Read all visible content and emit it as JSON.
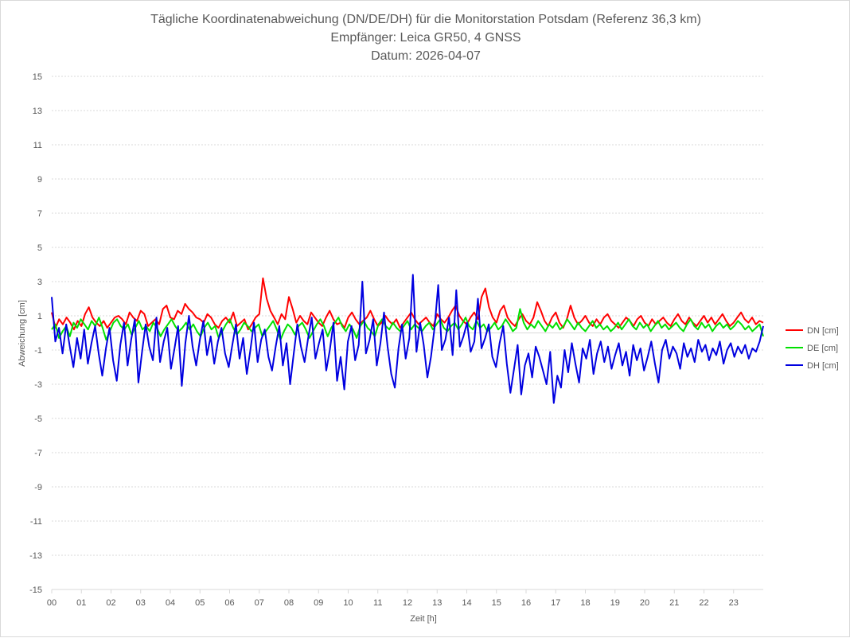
{
  "chart_data": {
    "type": "line",
    "title_lines": [
      "Tägliche Koordinatenabweichung (DN/DE/DH) für die Monitorstation Potsdam (Referenz 36,3 km)",
      "Empfänger: Leica GR50, 4 GNSS",
      "Datum: 2026-04-07"
    ],
    "xlabel": "Zeit [h]",
    "ylabel": "Abweichung [cm]",
    "xlim": [
      0,
      24
    ],
    "ylim": [
      -15,
      15
    ],
    "x_ticks": [
      "00",
      "01",
      "02",
      "03",
      "04",
      "05",
      "06",
      "07",
      "08",
      "09",
      "10",
      "11",
      "12",
      "13",
      "14",
      "15",
      "16",
      "17",
      "18",
      "19",
      "20",
      "21",
      "22",
      "23"
    ],
    "y_ticks": [
      "15",
      "13",
      "11",
      "9",
      "7",
      "5",
      "3",
      "1",
      "-1",
      "-3",
      "-5",
      "-7",
      "-9",
      "-11",
      "-13",
      "-15"
    ],
    "legend_position": "right",
    "x_step_hours": 0.0417,
    "series": [
      {
        "name": "DN [cm]",
        "color": "#ff0000",
        "values": [
          1.2,
          0.3,
          0.8,
          0.5,
          0.9,
          0.6,
          0.2,
          0.7,
          0.4,
          1.1,
          1.5,
          0.9,
          0.6,
          0.4,
          0.7,
          0.3,
          0.6,
          0.9,
          1.0,
          0.8,
          0.5,
          1.2,
          0.9,
          0.7,
          1.3,
          1.1,
          0.4,
          0.6,
          0.8,
          0.5,
          1.4,
          1.6,
          0.9,
          0.8,
          1.3,
          1.1,
          1.7,
          1.4,
          1.2,
          0.9,
          0.8,
          0.6,
          1.1,
          0.9,
          0.5,
          0.3,
          0.7,
          0.9,
          0.6,
          1.2,
          0.4,
          0.6,
          0.8,
          0.2,
          0.5,
          0.9,
          1.1,
          3.2,
          2.0,
          1.3,
          0.9,
          0.5,
          1.1,
          0.8,
          2.1,
          1.4,
          0.6,
          1.0,
          0.7,
          0.5,
          1.2,
          0.9,
          0.6,
          0.4,
          0.9,
          1.3,
          0.8,
          0.5,
          0.6,
          0.3,
          0.9,
          1.2,
          0.8,
          0.5,
          0.7,
          0.9,
          1.3,
          0.8,
          0.4,
          0.6,
          1.0,
          0.7,
          0.5,
          0.8,
          0.3,
          0.6,
          0.9,
          1.2,
          0.8,
          0.5,
          0.7,
          0.9,
          0.6,
          0.4,
          1.1,
          0.8,
          0.6,
          0.9,
          1.3,
          1.6,
          1.0,
          0.7,
          0.5,
          0.9,
          1.2,
          0.8,
          2.1,
          2.6,
          1.5,
          0.9,
          0.6,
          1.3,
          1.6,
          0.9,
          0.6,
          0.4,
          0.8,
          1.1,
          0.7,
          0.5,
          0.9,
          1.8,
          1.3,
          0.7,
          0.4,
          0.9,
          1.2,
          0.6,
          0.3,
          0.8,
          1.6,
          0.9,
          0.5,
          0.7,
          1.0,
          0.6,
          0.4,
          0.8,
          0.5,
          0.9,
          1.1,
          0.7,
          0.5,
          0.3,
          0.6,
          0.9,
          0.7,
          0.4,
          0.8,
          1.0,
          0.6,
          0.4,
          0.8,
          0.5,
          0.7,
          0.9,
          0.6,
          0.4,
          0.8,
          1.1,
          0.7,
          0.5,
          0.9,
          0.6,
          0.4,
          0.7,
          1.0,
          0.6,
          0.9,
          0.5,
          0.8,
          1.1,
          0.7,
          0.4,
          0.6,
          0.9,
          1.2,
          0.8,
          0.6,
          0.9,
          0.5,
          0.7,
          0.6
        ],
        "note": ""
      },
      {
        "name": "DE [cm]",
        "color": "#00e000",
        "values": [
          0.2,
          0.5,
          -0.3,
          0.1,
          0.4,
          -0.2,
          0.6,
          0.3,
          0.8,
          0.5,
          0.2,
          0.7,
          0.4,
          0.9,
          0.3,
          -0.4,
          0.1,
          0.6,
          0.8,
          0.4,
          0.2,
          0.5,
          -0.1,
          0.3,
          0.7,
          0.2,
          0.4,
          0.1,
          0.6,
          0.3,
          -0.2,
          0.2,
          0.5,
          0.8,
          0.4,
          0.1,
          0.3,
          0.6,
          0.2,
          0.5,
          0.1,
          -0.2,
          0.3,
          0.6,
          0.2,
          0.4,
          -0.3,
          0.1,
          0.5,
          0.8,
          0.3,
          -0.1,
          0.2,
          0.6,
          0.4,
          0.1,
          0.3,
          0.5,
          -0.2,
          0.1,
          0.4,
          0.7,
          0.2,
          -0.4,
          0.1,
          0.5,
          0.3,
          -0.1,
          0.4,
          0.6,
          0.2,
          -0.3,
          0.1,
          0.5,
          0.8,
          0.4,
          -0.2,
          0.3,
          0.6,
          0.9,
          0.4,
          0.1,
          0.5,
          0.2,
          -0.3,
          0.4,
          0.7,
          0.3,
          0.1,
          -0.2,
          0.5,
          0.8,
          0.4,
          0.2,
          0.6,
          0.3,
          0.1,
          0.4,
          0.7,
          0.2,
          0.5,
          0.3,
          0.1,
          0.4,
          0.6,
          0.2,
          0.5,
          0.8,
          0.3,
          0.1,
          0.4,
          0.6,
          0.2,
          0.5,
          0.9,
          0.4,
          0.2,
          0.7,
          0.3,
          0.5,
          0.1,
          0.3,
          0.6,
          0.2,
          0.4,
          0.8,
          0.5,
          0.1,
          0.3,
          1.4,
          0.6,
          0.2,
          0.5,
          0.3,
          0.7,
          0.4,
          0.1,
          0.5,
          0.3,
          0.6,
          0.2,
          0.4,
          0.8,
          0.5,
          0.2,
          0.6,
          0.3,
          0.1,
          0.4,
          0.7,
          0.3,
          0.5,
          0.2,
          0.4,
          0.1,
          0.3,
          0.6,
          0.2,
          0.5,
          0.8,
          0.4,
          0.2,
          0.6,
          0.3,
          0.5,
          0.1,
          0.4,
          0.7,
          0.3,
          0.5,
          0.2,
          0.4,
          0.6,
          0.3,
          0.1,
          0.5,
          0.8,
          0.4,
          0.2,
          0.6,
          0.3,
          0.5,
          0.1,
          0.4,
          0.6,
          0.3,
          0.5,
          0.2,
          0.4,
          0.7,
          0.5,
          0.2,
          0.4,
          0.1,
          0.3,
          0.5,
          -0.2
        ],
        "note": ""
      },
      {
        "name": "DH [cm]",
        "color": "#0000e0",
        "values": [
          2.1,
          -0.5,
          0.3,
          -1.2,
          0.5,
          -0.8,
          -2.0,
          -0.3,
          -1.5,
          0.2,
          -1.8,
          -0.6,
          0.4,
          -1.2,
          -2.5,
          -0.9,
          0.3,
          -1.6,
          -2.8,
          -0.7,
          0.6,
          -1.9,
          -0.4,
          0.8,
          -2.9,
          -1.1,
          0.5,
          -0.8,
          -1.6,
          0.9,
          -1.7,
          -0.5,
          0.3,
          -2.1,
          -0.9,
          0.4,
          -3.1,
          -0.6,
          1.0,
          -0.8,
          -1.9,
          -0.4,
          0.7,
          -1.3,
          -0.2,
          -1.8,
          -0.5,
          0.3,
          -1.2,
          -2.0,
          -0.7,
          0.5,
          -1.5,
          -0.3,
          -2.4,
          -1.0,
          0.6,
          -1.7,
          -0.4,
          0.2,
          -1.4,
          -2.2,
          -0.8,
          0.4,
          -1.9,
          -0.6,
          -3.0,
          -1.2,
          0.5,
          -0.8,
          -1.7,
          -0.3,
          0.9,
          -1.5,
          -0.6,
          0.2,
          -2.2,
          -1.0,
          0.6,
          -2.8,
          -1.4,
          -3.3,
          -0.5,
          0.4,
          -1.6,
          -0.7,
          3.0,
          -1.2,
          -0.4,
          0.8,
          -1.9,
          -0.6,
          1.2,
          -0.8,
          -2.4,
          -3.2,
          -0.9,
          0.5,
          -1.5,
          -0.3,
          3.4,
          -1.1,
          0.6,
          -0.7,
          -2.6,
          -1.4,
          0.3,
          2.8,
          -1.0,
          -0.4,
          0.9,
          -1.3,
          2.5,
          -0.8,
          -0.2,
          0.6,
          -1.1,
          -0.5,
          2.0,
          -0.9,
          -0.3,
          0.5,
          -1.4,
          -2.0,
          -0.6,
          0.4,
          -1.8,
          -3.5,
          -2.1,
          -0.7,
          -3.6,
          -1.9,
          -1.2,
          -2.6,
          -0.8,
          -1.4,
          -2.2,
          -3.0,
          -1.1,
          -4.1,
          -2.5,
          -3.2,
          -1.0,
          -2.3,
          -0.6,
          -1.8,
          -2.9,
          -0.9,
          -1.5,
          -0.4,
          -2.4,
          -1.2,
          -0.5,
          -1.7,
          -0.8,
          -2.1,
          -1.3,
          -0.6,
          -1.9,
          -1.1,
          -2.5,
          -0.7,
          -1.6,
          -0.9,
          -2.2,
          -1.4,
          -0.5,
          -1.8,
          -2.9,
          -1.0,
          -0.4,
          -1.5,
          -0.8,
          -1.2,
          -2.1,
          -0.6,
          -1.4,
          -0.9,
          -1.7,
          -0.4,
          -1.1,
          -0.7,
          -1.6,
          -0.9,
          -1.3,
          -0.5,
          -1.8,
          -1.0,
          -0.6,
          -1.4,
          -0.8,
          -1.2,
          -0.7,
          -1.5,
          -0.9,
          -1.1,
          -0.5,
          0.4
        ]
      }
    ]
  }
}
